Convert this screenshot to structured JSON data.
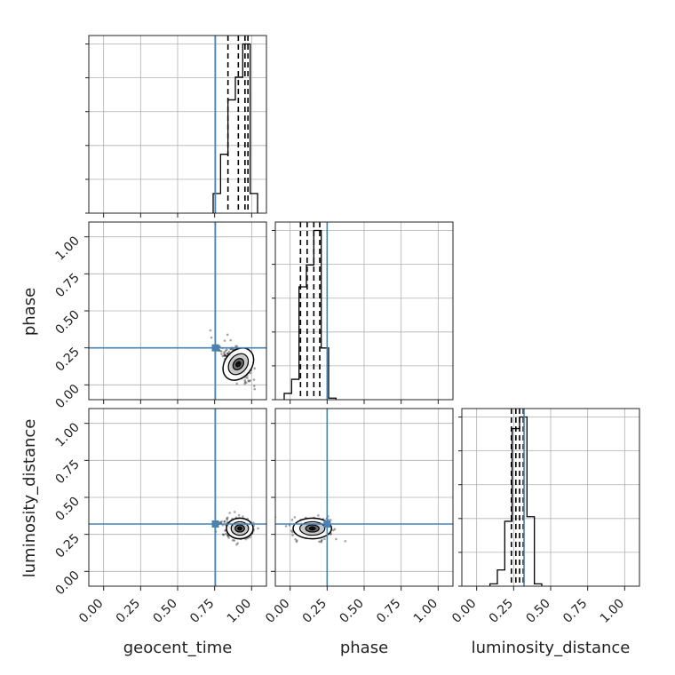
{
  "chart_data": {
    "type": "corner",
    "parameters": [
      "geocent_time",
      "phase",
      "luminosity_distance"
    ],
    "axis_range": [
      -0.1,
      1.1
    ],
    "ticks": [
      0.0,
      0.25,
      0.5,
      0.75,
      1.0
    ],
    "tick_labels": [
      "0.00",
      "0.25",
      "0.50",
      "0.75",
      "1.00"
    ],
    "grid": true,
    "colors": {
      "truth": "#4682b4",
      "hist": "#000000",
      "grid": "#b0b0b0"
    },
    "injection": {
      "geocent_time": 0.755,
      "phase": 0.25,
      "luminosity_distance": 0.32
    },
    "marginals": [
      {
        "parameter": "geocent_time",
        "bin_edges": [
          0.74,
          0.79,
          0.84,
          0.89,
          0.94,
          0.99,
          1.04
        ],
        "counts": [
          0.13,
          0.39,
          0.75,
          0.9,
          1.12,
          0.13
        ],
        "quantiles": [
          0.84,
          0.91,
          0.955,
          0.975
        ]
      },
      {
        "parameter": "phase",
        "bin_edges": [
          -0.04,
          0.01,
          0.06,
          0.11,
          0.16,
          0.21,
          0.26,
          0.31
        ],
        "counts": [
          0.04,
          0.13,
          0.72,
          0.86,
          1.08,
          0.33,
          0.01
        ],
        "quantiles": [
          0.07,
          0.115,
          0.16,
          0.2
        ]
      },
      {
        "parameter": "luminosity_distance",
        "bin_edges": [
          0.09,
          0.14,
          0.19,
          0.24,
          0.29,
          0.34,
          0.39,
          0.44
        ],
        "counts": [
          0.01,
          0.07,
          0.28,
          0.68,
          0.73,
          0.3,
          0.01
        ],
        "quantiles": [
          0.235,
          0.265,
          0.29,
          0.315
        ]
      }
    ],
    "joints": [
      {
        "x": "geocent_time",
        "y": "phase",
        "center": [
          0.91,
          0.14
        ],
        "spread": [
          0.045,
          0.06
        ],
        "rho": -0.65,
        "tail_toward": [
          0.76,
          0.26
        ]
      },
      {
        "x": "geocent_time",
        "y": "luminosity_distance",
        "center": [
          0.92,
          0.29
        ],
        "spread": [
          0.045,
          0.035
        ],
        "rho": 0.0,
        "tail_toward": [
          0.78,
          0.34
        ]
      },
      {
        "x": "phase",
        "y": "luminosity_distance",
        "center": [
          0.15,
          0.29
        ],
        "spread": [
          0.065,
          0.035
        ],
        "rho": 0.0,
        "tail_toward": [
          0.25,
          0.33
        ]
      }
    ]
  }
}
